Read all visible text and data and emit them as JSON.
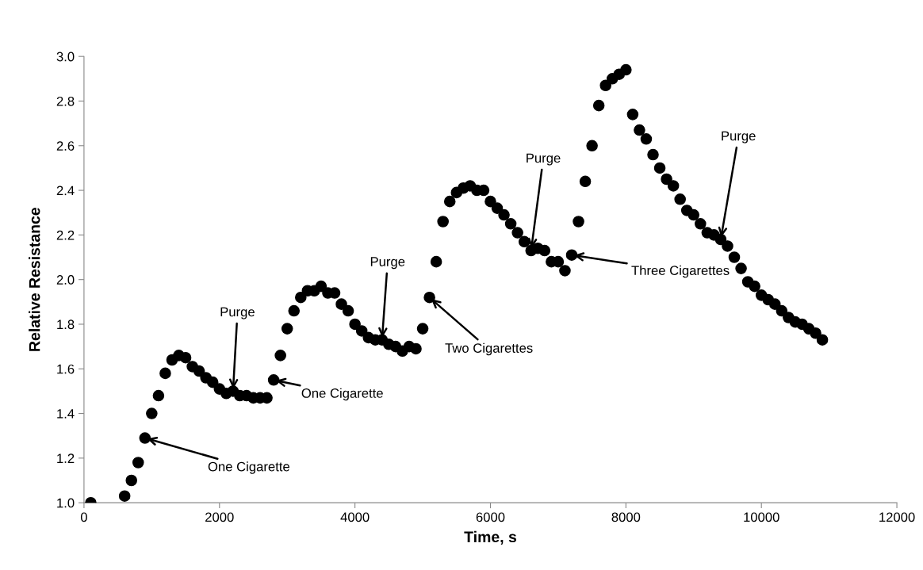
{
  "chart_data": {
    "type": "scatter",
    "xlabel": "Time, s",
    "ylabel": "Relative Resistance",
    "x": [
      100,
      600,
      700,
      800,
      900,
      1000,
      1100,
      1200,
      1300,
      1400,
      1500,
      1600,
      1700,
      1800,
      1900,
      2000,
      2100,
      2200,
      2300,
      2400,
      2500,
      2600,
      2700,
      2800,
      2900,
      3000,
      3100,
      3200,
      3300,
      3400,
      3500,
      3600,
      3700,
      3800,
      3900,
      4000,
      4100,
      4200,
      4300,
      4400,
      4500,
      4600,
      4700,
      4800,
      4900,
      5000,
      5100,
      5200,
      5300,
      5400,
      5500,
      5600,
      5700,
      5800,
      5900,
      6000,
      6100,
      6200,
      6300,
      6400,
      6500,
      6600,
      6700,
      6800,
      6900,
      7000,
      7100,
      7200,
      7300,
      7400,
      7500,
      7600,
      7700,
      7800,
      7900,
      8000,
      8100,
      8200,
      8300,
      8400,
      8500,
      8600,
      8700,
      8800,
      8900,
      9000,
      9100,
      9200,
      9300,
      9400,
      9500,
      9600,
      9700,
      9800,
      9900,
      10000,
      10100,
      10200,
      10300,
      10400,
      10500,
      10600,
      10700,
      10800,
      10900
    ],
    "series": [
      {
        "color": "#000000",
        "values": [
          1.0,
          1.03,
          1.1,
          1.18,
          1.29,
          1.4,
          1.48,
          1.58,
          1.64,
          1.66,
          1.65,
          1.61,
          1.59,
          1.56,
          1.54,
          1.51,
          1.49,
          1.5,
          1.48,
          1.48,
          1.47,
          1.47,
          1.47,
          1.55,
          1.66,
          1.78,
          1.86,
          1.92,
          1.95,
          1.95,
          1.97,
          1.94,
          1.94,
          1.89,
          1.86,
          1.8,
          1.77,
          1.74,
          1.73,
          1.73,
          1.71,
          1.7,
          1.68,
          1.7,
          1.69,
          1.78,
          1.92,
          2.08,
          2.26,
          2.35,
          2.39,
          2.41,
          2.42,
          2.4,
          2.4,
          2.35,
          2.32,
          2.29,
          2.25,
          2.21,
          2.17,
          2.13,
          2.14,
          2.13,
          2.08,
          2.08,
          2.04,
          2.11,
          2.26,
          2.44,
          2.6,
          2.78,
          2.87,
          2.9,
          2.92,
          2.94,
          2.74,
          2.67,
          2.63,
          2.56,
          2.5,
          2.45,
          2.42,
          2.36,
          2.31,
          2.29,
          2.25,
          2.21,
          2.2,
          2.18,
          2.15,
          2.1,
          2.05,
          1.99,
          1.97,
          1.93,
          1.91,
          1.89,
          1.86,
          1.83,
          1.81,
          1.8,
          1.78,
          1.76,
          1.73
        ]
      }
    ],
    "xlim": [
      0,
      12000
    ],
    "xticks": [
      0,
      2000,
      4000,
      6000,
      8000,
      10000,
      12000
    ],
    "ylim": [
      1.0,
      3.0
    ],
    "yticks": [
      {
        "value": 1.0,
        "label": "1.0"
      },
      {
        "value": 1.2,
        "label": "1.2"
      },
      {
        "value": 1.4,
        "label": "1.4"
      },
      {
        "value": 1.6,
        "label": "1.6"
      },
      {
        "value": 1.8,
        "label": "1.8"
      },
      {
        "value": 2.0,
        "label": "2.0"
      },
      {
        "value": 2.2,
        "label": "2.2"
      },
      {
        "value": 2.4,
        "label": "2.4"
      },
      {
        "value": 2.6,
        "label": "2.6"
      },
      {
        "value": 2.8,
        "label": "2.8"
      },
      {
        "value": 3.0,
        "label": "3.0"
      }
    ],
    "grid": false,
    "legend": false,
    "marker": "circle",
    "annotations": [
      {
        "text": "One Cigarette",
        "x": 900,
        "y": 1.29
      },
      {
        "text": "Purge",
        "x": 2200,
        "y": 1.5
      },
      {
        "text": "One Cigarette",
        "x": 2800,
        "y": 1.55
      },
      {
        "text": "Purge",
        "x": 4400,
        "y": 1.73
      },
      {
        "text": "Two Cigarettes",
        "x": 5100,
        "y": 1.92
      },
      {
        "text": "Purge",
        "x": 6600,
        "y": 2.13
      },
      {
        "text": "Three Cigarettes",
        "x": 7200,
        "y": 2.11
      },
      {
        "text": "Purge",
        "x": 9400,
        "y": 2.18
      }
    ]
  }
}
